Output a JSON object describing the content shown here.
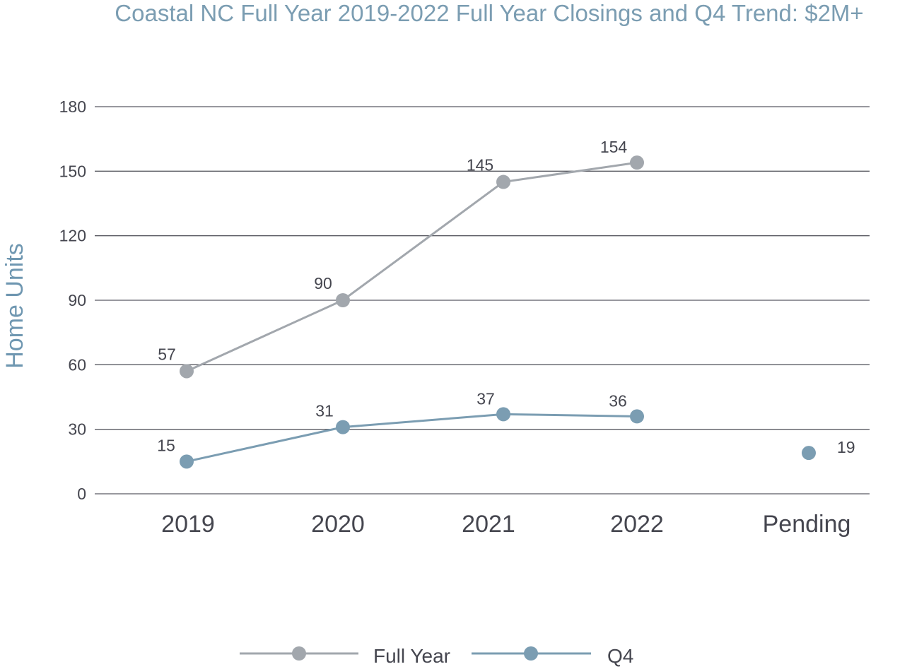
{
  "chart_data": {
    "type": "line",
    "title": "Coastal NC Full Year 2019-2022 Full Year Closings and Q4 Trend: $2M+",
    "ylabel": "Home Units",
    "xlabel": "",
    "categories": [
      "2019",
      "2020",
      "2021",
      "2022",
      "Pending"
    ],
    "ylim": [
      0,
      180
    ],
    "yticks": [
      0,
      30,
      60,
      90,
      120,
      150,
      180
    ],
    "grid": true,
    "legend_position": "bottom",
    "series": [
      {
        "name": "Full Year",
        "color": "#a2a7ad",
        "values": [
          57,
          90,
          145,
          154,
          null
        ],
        "labels": [
          "57",
          "90",
          "145",
          "154",
          null
        ]
      },
      {
        "name": "Q4",
        "color": "#7b9db2",
        "values": [
          15,
          31,
          37,
          36,
          19
        ],
        "labels": [
          "15",
          "31",
          "37",
          "36",
          "19"
        ]
      }
    ]
  }
}
